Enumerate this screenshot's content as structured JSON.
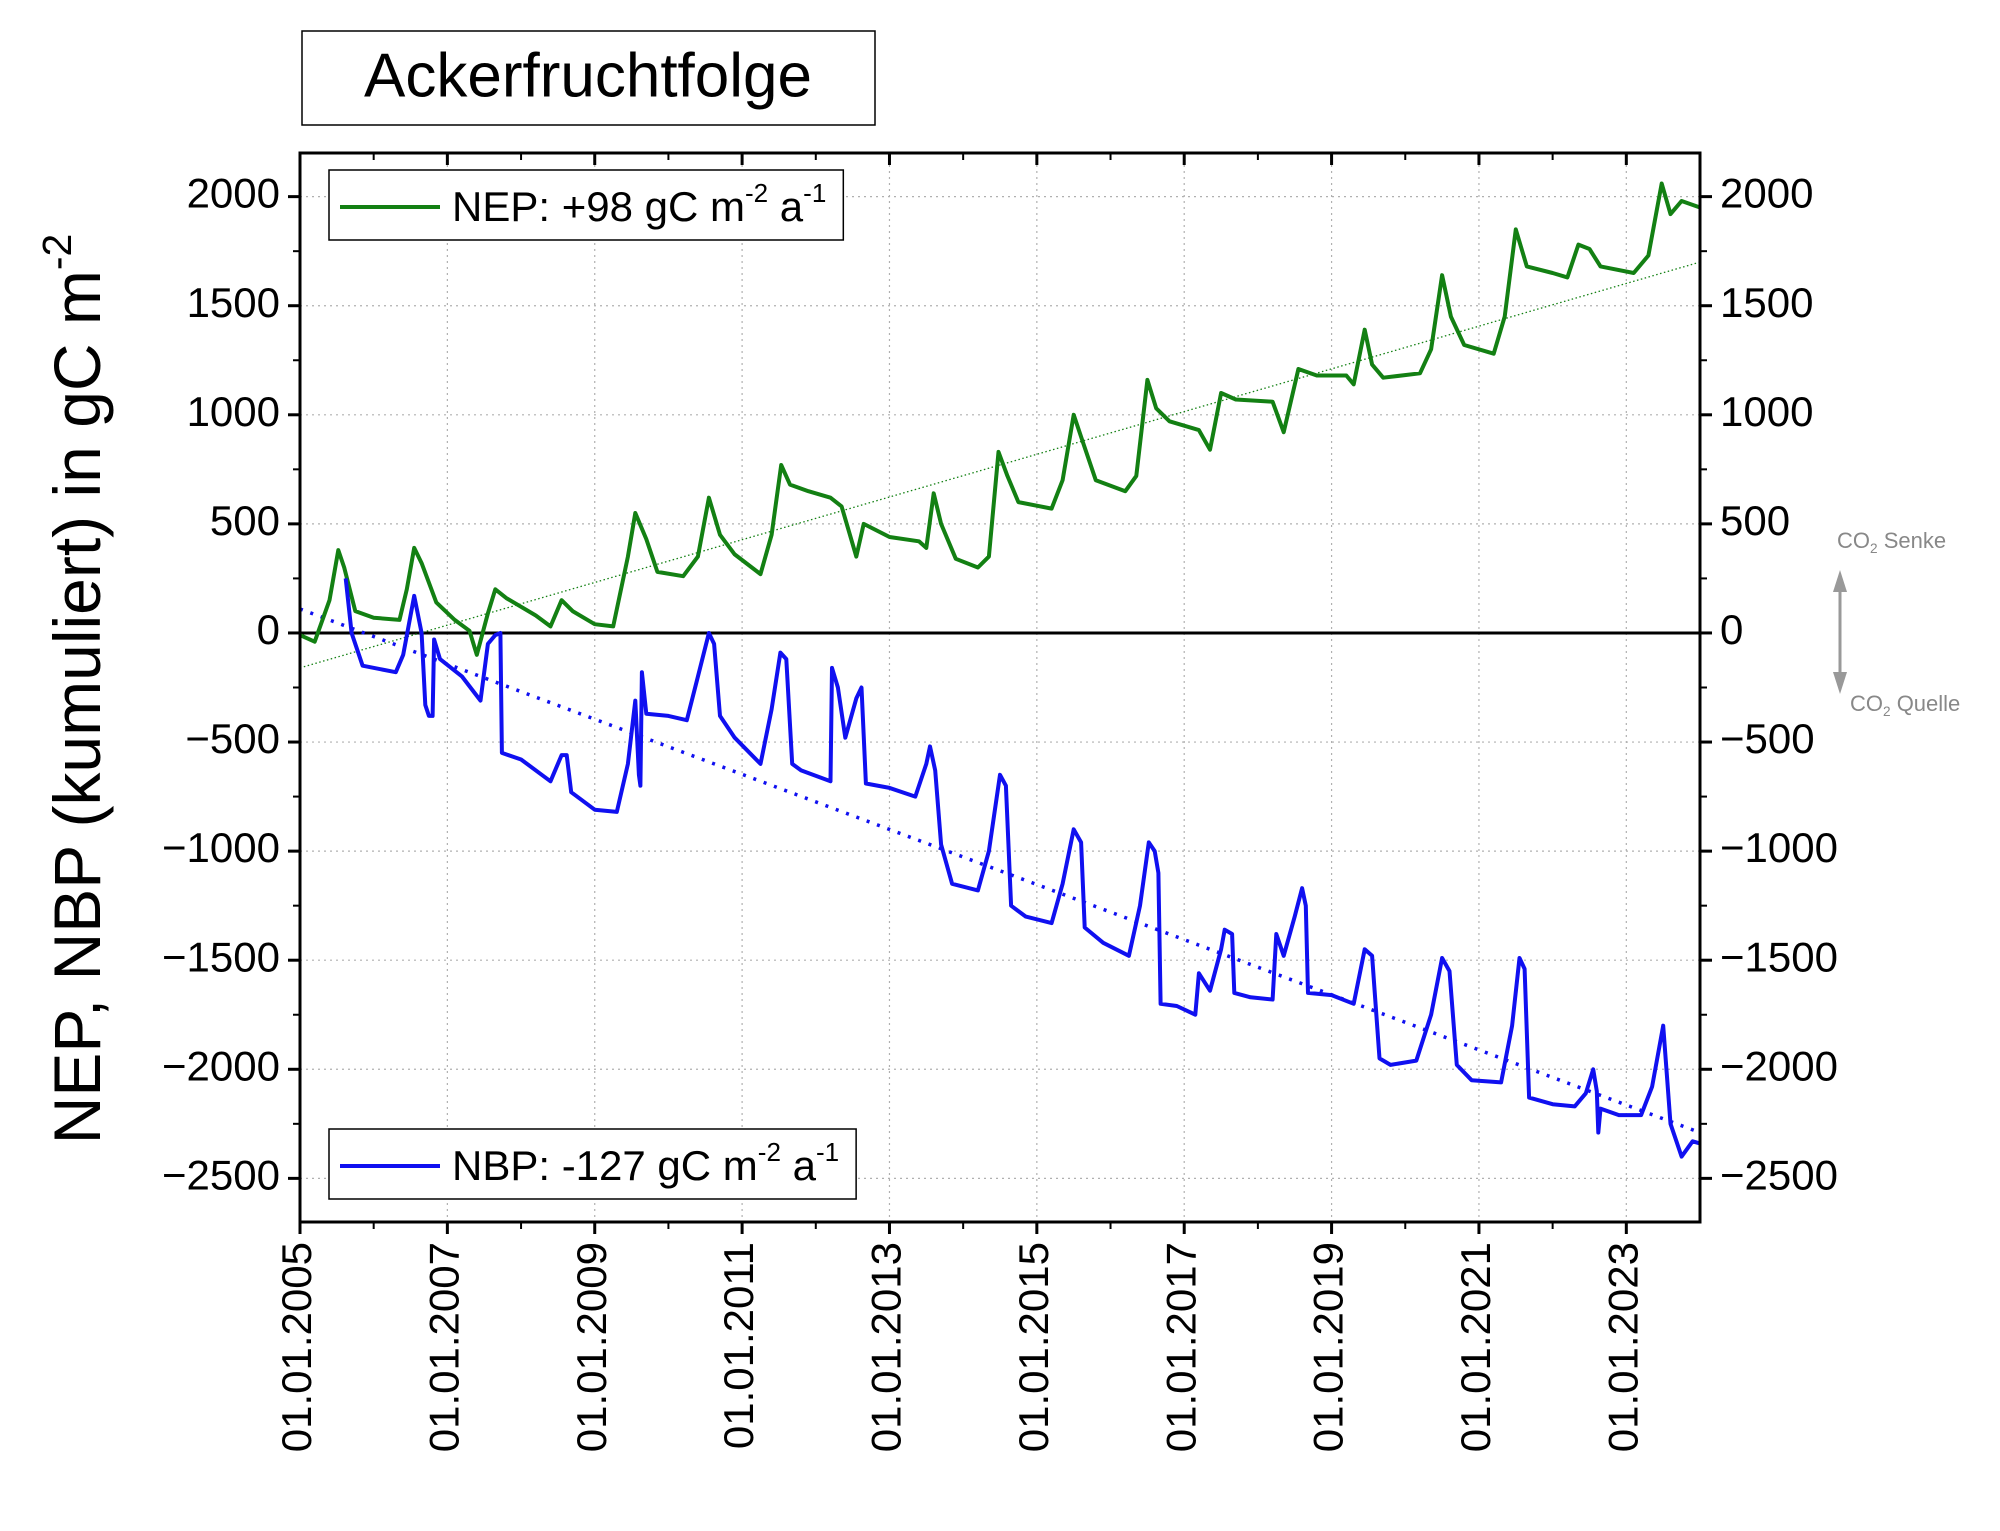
{
  "chart_data": {
    "type": "line",
    "title": "Ackerfruchtfolge",
    "y_label": [
      "NEP, NBP (kumuliert) in gC m",
      "-2"
    ],
    "xlim": [
      2005,
      2024
    ],
    "xticks": [
      {
        "value": 2005,
        "label": "01.01.2005"
      },
      {
        "value": 2007,
        "label": "01.01.2007"
      },
      {
        "value": 2009,
        "label": "01.01.2009"
      },
      {
        "value": 2011,
        "label": "01.01.2011"
      },
      {
        "value": 2013,
        "label": "01.01.2013"
      },
      {
        "value": 2015,
        "label": "01.01.2015"
      },
      {
        "value": 2017,
        "label": "01.01.2017"
      },
      {
        "value": 2019,
        "label": "01.01.2019"
      },
      {
        "value": 2021,
        "label": "01.01.2021"
      },
      {
        "value": 2023,
        "label": "01.01.2023"
      }
    ],
    "ylim": [
      -2700,
      2200
    ],
    "yticks": [
      {
        "value": -2500,
        "label": "−2500"
      },
      {
        "value": -2000,
        "label": "−2000"
      },
      {
        "value": -1500,
        "label": "−1500"
      },
      {
        "value": -1000,
        "label": "−1000"
      },
      {
        "value": -500,
        "label": "−500"
      },
      0,
      500,
      1000,
      1500,
      2000
    ],
    "grid": true,
    "zero_line": true,
    "annotations": [
      {
        "parts": [
          "CO",
          "2",
          "  Senke"
        ]
      },
      {
        "parts": [
          "CO",
          "2",
          "  Quelle"
        ]
      }
    ],
    "series": [
      {
        "name": [
          "NEP: +98 gC m",
          "-2",
          " a",
          "-1"
        ],
        "color": "#138013",
        "legend_loc": "upper left",
        "x": [
          2005.0,
          2005.2,
          2005.4,
          2005.52,
          2005.6,
          2005.75,
          2006.0,
          2006.35,
          2006.45,
          2006.55,
          2006.65,
          2006.85,
          2007.1,
          2007.3,
          2007.4,
          2007.55,
          2007.65,
          2007.8,
          2008.2,
          2008.4,
          2008.55,
          2008.7,
          2009.0,
          2009.25,
          2009.45,
          2009.55,
          2009.7,
          2009.85,
          2010.2,
          2010.4,
          2010.55,
          2010.7,
          2010.9,
          2011.25,
          2011.4,
          2011.53,
          2011.65,
          2011.9,
          2012.2,
          2012.35,
          2012.55,
          2012.65,
          2013.0,
          2013.4,
          2013.5,
          2013.6,
          2013.7,
          2013.9,
          2014.2,
          2014.35,
          2014.48,
          2014.6,
          2014.75,
          2015.2,
          2015.35,
          2015.5,
          2015.62,
          2015.8,
          2016.2,
          2016.35,
          2016.5,
          2016.62,
          2016.8,
          2017.2,
          2017.35,
          2017.5,
          2017.7,
          2018.2,
          2018.35,
          2018.55,
          2018.8,
          2019.2,
          2019.3,
          2019.45,
          2019.55,
          2019.7,
          2020.2,
          2020.35,
          2020.5,
          2020.62,
          2020.8,
          2021.2,
          2021.35,
          2021.5,
          2021.65,
          2022.0,
          2022.2,
          2022.35,
          2022.5,
          2022.65,
          2023.1,
          2023.3,
          2023.48,
          2023.6,
          2023.75,
          2024.0
        ],
        "values": [
          -10,
          -40,
          150,
          380,
          300,
          100,
          70,
          60,
          200,
          390,
          320,
          140,
          60,
          10,
          -100,
          90,
          200,
          160,
          80,
          30,
          150,
          100,
          40,
          30,
          350,
          550,
          430,
          280,
          260,
          350,
          620,
          450,
          360,
          270,
          450,
          770,
          680,
          650,
          620,
          580,
          350,
          500,
          440,
          420,
          390,
          640,
          500,
          340,
          300,
          350,
          830,
          720,
          600,
          570,
          700,
          1000,
          880,
          700,
          650,
          720,
          1160,
          1030,
          970,
          930,
          840,
          1100,
          1070,
          1060,
          920,
          1210,
          1180,
          1180,
          1140,
          1390,
          1230,
          1170,
          1190,
          1300,
          1640,
          1450,
          1320,
          1280,
          1450,
          1850,
          1680,
          1650,
          1630,
          1780,
          1760,
          1680,
          1650,
          1730,
          2060,
          1920,
          1980,
          1950
        ]
      },
      {
        "name": [
          "NBP: -127 gC m",
          "-2",
          " a",
          "-1"
        ],
        "color": "#1010f0",
        "legend_loc": "lower left",
        "x": [
          2005.62,
          2005.7,
          2005.85,
          2006.3,
          2006.4,
          2006.55,
          2006.65,
          2006.7,
          2006.75,
          2006.8,
          2006.82,
          2006.9,
          2007.2,
          2007.45,
          2007.55,
          2007.65,
          2007.72,
          2007.74,
          2008.0,
          2008.4,
          2008.55,
          2008.62,
          2008.68,
          2009.0,
          2009.3,
          2009.45,
          2009.55,
          2009.6,
          2009.62,
          2009.64,
          2009.7,
          2010.0,
          2010.25,
          2010.4,
          2010.55,
          2010.62,
          2010.7,
          2010.9,
          2011.25,
          2011.4,
          2011.52,
          2011.6,
          2011.68,
          2011.8,
          2012.2,
          2012.22,
          2012.3,
          2012.4,
          2012.55,
          2012.62,
          2012.68,
          2013.0,
          2013.35,
          2013.5,
          2013.55,
          2013.62,
          2013.7,
          2013.85,
          2014.2,
          2014.35,
          2014.5,
          2014.58,
          2014.65,
          2014.85,
          2015.2,
          2015.35,
          2015.5,
          2015.6,
          2015.65,
          2015.9,
          2016.25,
          2016.4,
          2016.52,
          2016.6,
          2016.65,
          2016.68,
          2016.9,
          2017.15,
          2017.2,
          2017.35,
          2017.5,
          2017.55,
          2017.65,
          2017.68,
          2017.9,
          2018.2,
          2018.25,
          2018.35,
          2018.5,
          2018.6,
          2018.65,
          2018.68,
          2019.0,
          2019.3,
          2019.45,
          2019.55,
          2019.65,
          2019.8,
          2020.15,
          2020.35,
          2020.5,
          2020.6,
          2020.7,
          2020.9,
          2021.3,
          2021.45,
          2021.55,
          2021.62,
          2021.68,
          2022.0,
          2022.3,
          2022.45,
          2022.55,
          2022.6,
          2022.62,
          2022.65,
          2022.9,
          2023.2,
          2023.35,
          2023.5,
          2023.6,
          2023.75,
          2023.9,
          2024.0
        ],
        "values": [
          250,
          0,
          -150,
          -180,
          -100,
          170,
          0,
          -330,
          -380,
          -380,
          -30,
          -120,
          -200,
          -310,
          -50,
          -10,
          0,
          -550,
          -580,
          -680,
          -560,
          -560,
          -730,
          -810,
          -820,
          -600,
          -310,
          -650,
          -700,
          -180,
          -370,
          -380,
          -400,
          -200,
          0,
          -50,
          -380,
          -480,
          -600,
          -350,
          -90,
          -120,
          -600,
          -630,
          -680,
          -160,
          -250,
          -480,
          -300,
          -250,
          -690,
          -710,
          -750,
          -600,
          -520,
          -630,
          -970,
          -1150,
          -1180,
          -1000,
          -650,
          -700,
          -1250,
          -1300,
          -1330,
          -1150,
          -900,
          -960,
          -1350,
          -1420,
          -1480,
          -1250,
          -960,
          -1000,
          -1100,
          -1700,
          -1710,
          -1750,
          -1560,
          -1640,
          -1450,
          -1360,
          -1380,
          -1650,
          -1670,
          -1680,
          -1380,
          -1480,
          -1300,
          -1170,
          -1250,
          -1650,
          -1660,
          -1700,
          -1450,
          -1480,
          -1950,
          -1980,
          -1960,
          -1750,
          -1490,
          -1550,
          -1980,
          -2050,
          -2060,
          -1800,
          -1490,
          -1540,
          -2130,
          -2160,
          -2170,
          -2110,
          -2000,
          -2100,
          -2290,
          -2180,
          -2210,
          -2210,
          -2080,
          -1800,
          -2250,
          -2400,
          -2330,
          -2340
        ]
      }
    ],
    "trends": [
      {
        "color": "#138013",
        "linestyle": "dotted",
        "x": [
          2005,
          2024
        ],
        "values": [
          -160,
          1700
        ]
      },
      {
        "color": "#1010f0",
        "linestyle": "dotted",
        "x": [
          2005,
          2024
        ],
        "values": [
          110,
          -2290
        ]
      }
    ]
  }
}
